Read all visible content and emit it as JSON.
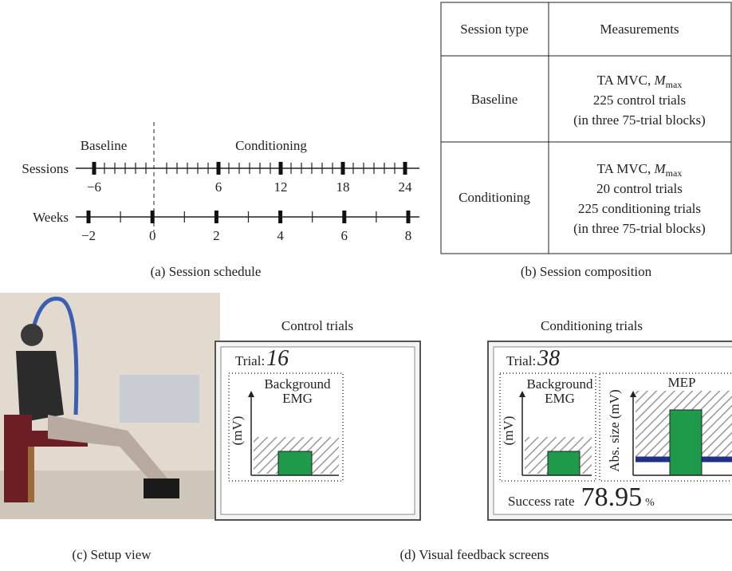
{
  "schedule": {
    "phase_labels": [
      "Baseline",
      "Conditioning"
    ],
    "sessions": {
      "label": "Sessions",
      "tick_labels": [
        "−6",
        "6",
        "12",
        "18",
        "24"
      ]
    },
    "weeks": {
      "label": "Weeks",
      "tick_labels": [
        "−2",
        "0",
        "2",
        "4",
        "6",
        "8"
      ]
    },
    "caption": "(a) Session schedule"
  },
  "table": {
    "header": [
      "Session type",
      "Measurements"
    ],
    "rows": [
      {
        "type": "Baseline",
        "measurements": {
          "first_line": {
            "text": "TA MVC, ",
            "symbol": "M",
            "subscript": "max"
          },
          "lines": [
            "225 control trials",
            "(in three 75-trial blocks)"
          ]
        }
      },
      {
        "type": "Conditioning",
        "measurements": {
          "first_line": {
            "text": "TA MVC, ",
            "symbol": "M",
            "subscript": "max"
          },
          "lines": [
            "20 control trials",
            "225 conditioning trials",
            "(in three 75-trial blocks)"
          ]
        }
      }
    ],
    "caption": "(b) Session composition"
  },
  "setup": {
    "caption": "(c) Setup view"
  },
  "feedback": {
    "caption": "(d) Visual feedback screens",
    "control": {
      "title": "Control trials",
      "trial_label": "Trial:",
      "trial": 16,
      "panel_title": [
        "Background",
        "EMG"
      ],
      "axis_label": "(mV)"
    },
    "conditioning": {
      "title": "Conditioning trials",
      "trial_label": "Trial:",
      "trial": 38,
      "emg_title": [
        "Background",
        "EMG"
      ],
      "emg_axis_label": "(mV)",
      "mep_title": "MEP",
      "mep_axis_label": "Abs. size (mV)",
      "success_label": "Success rate",
      "success_rate": 78.95,
      "success_unit": "%"
    }
  }
}
